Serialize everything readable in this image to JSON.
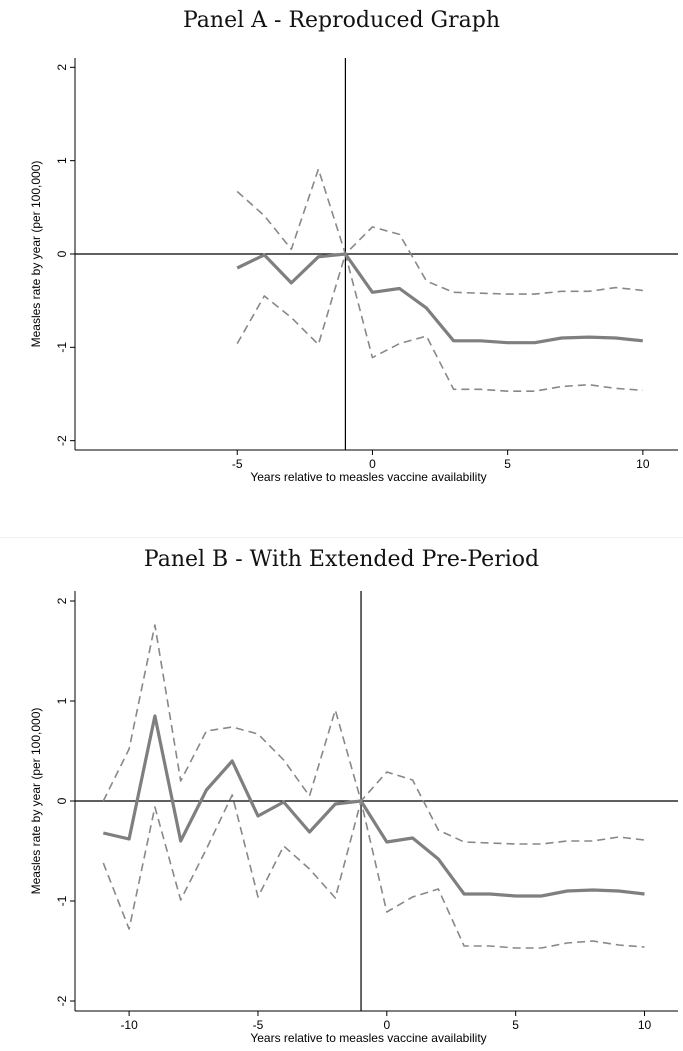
{
  "chart_data": [
    {
      "type": "line",
      "title": "Panel A - Reproduced Graph",
      "xlabel": "Years relative to measles vaccine availability",
      "ylabel": "Measles rate by year (per 100,000)",
      "xlim": [
        -11,
        11.3
      ],
      "ylim": [
        -2.1,
        2.1
      ],
      "xticks": [
        -5,
        0,
        5,
        10
      ],
      "yticks": [
        -2,
        -1,
        0,
        1,
        2
      ],
      "hline": 0,
      "vline": -1,
      "grid": false,
      "series": [
        {
          "role": "estimate",
          "style": "solid",
          "x": [
            -5,
            -4,
            -3,
            -2,
            -1,
            0,
            1,
            2,
            3,
            4,
            5,
            6,
            7,
            8,
            9,
            10
          ],
          "y": [
            -0.15,
            -0.01,
            -0.31,
            -0.03,
            0,
            -0.41,
            -0.37,
            -0.58,
            -0.93,
            -0.93,
            -0.95,
            -0.95,
            -0.9,
            -0.89,
            -0.9,
            -0.93
          ]
        },
        {
          "role": "upper-ci",
          "style": "dashed",
          "x": [
            -5,
            -4,
            -3,
            -2,
            -1,
            0,
            1,
            2,
            3,
            4,
            5,
            6,
            7,
            8,
            9,
            10
          ],
          "y": [
            0.67,
            0.41,
            0.05,
            0.91,
            0,
            0.29,
            0.21,
            -0.29,
            -0.41,
            -0.42,
            -0.43,
            -0.43,
            -0.4,
            -0.4,
            -0.36,
            -0.39
          ]
        },
        {
          "role": "lower-ci",
          "style": "dashed",
          "x": [
            -5,
            -4,
            -3,
            -2,
            -1,
            0,
            1,
            2,
            3,
            4,
            5,
            6,
            7,
            8,
            9,
            10
          ],
          "y": [
            -0.96,
            -0.45,
            -0.68,
            -0.97,
            0,
            -1.11,
            -0.96,
            -0.88,
            -1.45,
            -1.45,
            -1.47,
            -1.47,
            -1.42,
            -1.4,
            -1.44,
            -1.46
          ]
        }
      ]
    },
    {
      "type": "line",
      "title": "Panel B - With Extended Pre-Period",
      "xlabel": "Years relative to measles vaccine availability",
      "ylabel": "Measles rate by year (per 100,000)",
      "xlim": [
        -12.1,
        11.3
      ],
      "ylim": [
        -2.1,
        2.1
      ],
      "xticks": [
        -10,
        -5,
        0,
        5,
        10
      ],
      "yticks": [
        -2,
        -1,
        0,
        1,
        2
      ],
      "hline": 0,
      "vline": -1,
      "grid": false,
      "series": [
        {
          "role": "estimate",
          "style": "solid",
          "x": [
            -11,
            -10,
            -9,
            -8,
            -7,
            -6,
            -5,
            -4,
            -3,
            -2,
            -1,
            0,
            1,
            2,
            3,
            4,
            5,
            6,
            7,
            8,
            9,
            10
          ],
          "y": [
            -0.32,
            -0.38,
            0.85,
            -0.4,
            0.11,
            0.4,
            -0.15,
            -0.01,
            -0.31,
            -0.03,
            0,
            -0.41,
            -0.37,
            -0.58,
            -0.93,
            -0.93,
            -0.95,
            -0.95,
            -0.9,
            -0.89,
            -0.9,
            -0.93
          ]
        },
        {
          "role": "upper-ci",
          "style": "dashed",
          "x": [
            -11,
            -10,
            -9,
            -8,
            -7,
            -6,
            -5,
            -4,
            -3,
            -2,
            -1,
            0,
            1,
            2,
            3,
            4,
            5,
            6,
            7,
            8,
            9,
            10
          ],
          "y": [
            0.0,
            0.52,
            1.76,
            0.2,
            0.7,
            0.74,
            0.67,
            0.41,
            0.05,
            0.91,
            0,
            0.29,
            0.21,
            -0.29,
            -0.41,
            -0.42,
            -0.43,
            -0.43,
            -0.4,
            -0.4,
            -0.36,
            -0.39
          ]
        },
        {
          "role": "lower-ci",
          "style": "dashed",
          "x": [
            -11,
            -10,
            -9,
            -8,
            -7,
            -6,
            -5,
            -4,
            -3,
            -2,
            -1,
            0,
            1,
            2,
            3,
            4,
            5,
            6,
            7,
            8,
            9,
            10
          ],
          "y": [
            -0.62,
            -1.28,
            -0.06,
            -0.99,
            -0.48,
            0.06,
            -0.96,
            -0.45,
            -0.68,
            -0.97,
            0,
            -1.11,
            -0.96,
            -0.88,
            -1.45,
            -1.45,
            -1.47,
            -1.47,
            -1.42,
            -1.4,
            -1.44,
            -1.46
          ]
        }
      ]
    }
  ]
}
